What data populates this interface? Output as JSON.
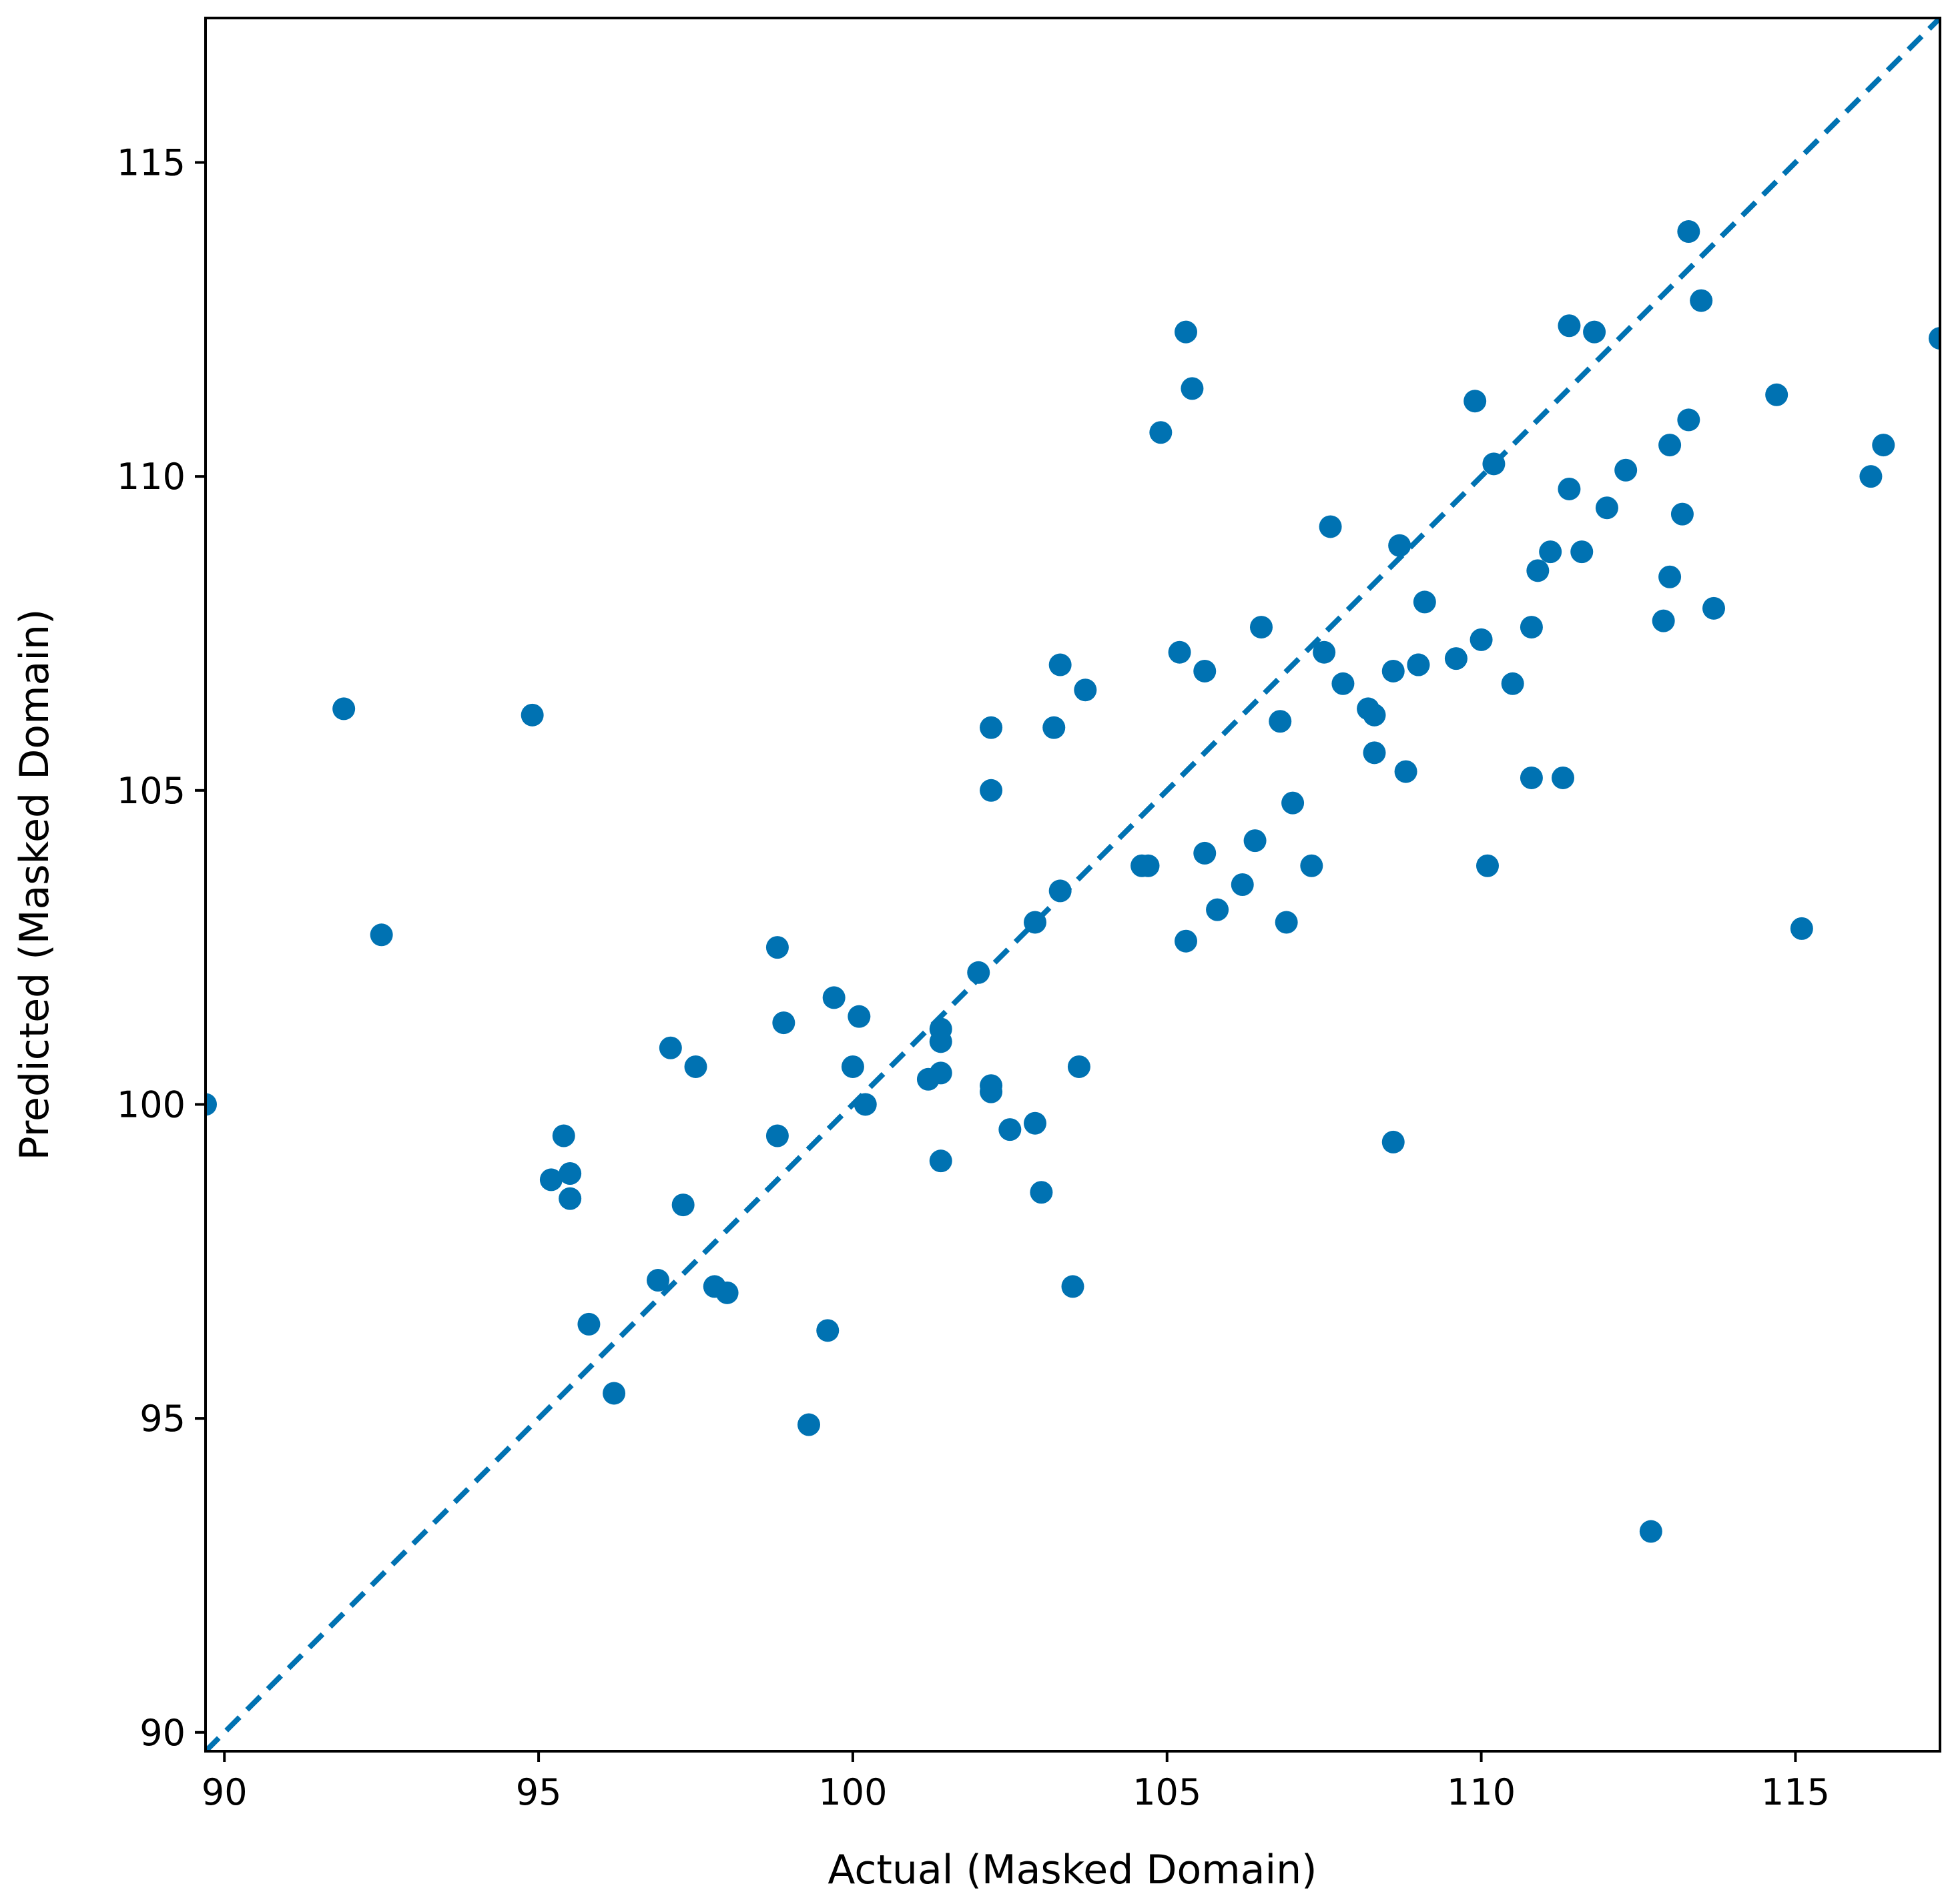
{
  "chart_data": {
    "type": "scatter",
    "xlabel": "Actual (Masked Domain)",
    "ylabel": "Predicted (Masked Domain)",
    "xlim": [
      89.7,
      117.3
    ],
    "ylim": [
      89.7,
      117.3
    ],
    "xticks": [
      90,
      95,
      100,
      105,
      110,
      115
    ],
    "yticks": [
      90,
      95,
      100,
      105,
      110,
      115
    ],
    "grid": false,
    "point_color": "#0072B2",
    "reference_line": {
      "style": "dashed",
      "from": [
        89.7,
        89.7
      ],
      "to": [
        117.3,
        117.3
      ],
      "color": "#0072B2"
    },
    "points": [
      [
        89.7,
        100.0
      ],
      [
        91.9,
        106.3
      ],
      [
        92.5,
        102.7
      ],
      [
        94.9,
        106.2
      ],
      [
        95.2,
        98.8
      ],
      [
        95.4,
        99.5
      ],
      [
        95.5,
        98.5
      ],
      [
        95.5,
        98.9
      ],
      [
        95.8,
        96.5
      ],
      [
        96.2,
        95.4
      ],
      [
        96.9,
        97.2
      ],
      [
        97.1,
        100.9
      ],
      [
        97.3,
        98.4
      ],
      [
        97.5,
        100.6
      ],
      [
        97.8,
        97.1
      ],
      [
        98.0,
        97.0
      ],
      [
        98.8,
        102.5
      ],
      [
        98.8,
        99.5
      ],
      [
        98.9,
        101.3
      ],
      [
        99.3,
        94.9
      ],
      [
        99.6,
        96.4
      ],
      [
        99.7,
        101.7
      ],
      [
        100.0,
        100.6
      ],
      [
        100.1,
        101.4
      ],
      [
        100.2,
        100.0
      ],
      [
        101.2,
        100.4
      ],
      [
        101.4,
        100.5
      ],
      [
        101.4,
        101.2
      ],
      [
        101.4,
        101.0
      ],
      [
        101.4,
        99.1
      ],
      [
        102.0,
        102.1
      ],
      [
        102.2,
        100.2
      ],
      [
        102.2,
        100.3
      ],
      [
        102.2,
        105.0
      ],
      [
        102.2,
        106.0
      ],
      [
        102.5,
        99.6
      ],
      [
        102.9,
        102.9
      ],
      [
        102.9,
        99.7
      ],
      [
        103.0,
        98.6
      ],
      [
        103.2,
        106.0
      ],
      [
        103.3,
        107.0
      ],
      [
        103.3,
        103.4
      ],
      [
        103.5,
        97.1
      ],
      [
        103.6,
        100.6
      ],
      [
        103.7,
        106.6
      ],
      [
        104.6,
        103.8
      ],
      [
        104.7,
        103.8
      ],
      [
        104.9,
        110.7
      ],
      [
        105.2,
        107.2
      ],
      [
        105.3,
        112.3
      ],
      [
        105.3,
        102.6
      ],
      [
        105.4,
        111.4
      ],
      [
        105.6,
        106.9
      ],
      [
        105.6,
        104.0
      ],
      [
        105.8,
        103.1
      ],
      [
        106.2,
        103.5
      ],
      [
        106.4,
        104.2
      ],
      [
        106.5,
        107.6
      ],
      [
        106.8,
        106.1
      ],
      [
        106.9,
        102.9
      ],
      [
        107.0,
        104.8
      ],
      [
        107.3,
        103.8
      ],
      [
        107.5,
        107.2
      ],
      [
        107.6,
        109.2
      ],
      [
        107.8,
        106.7
      ],
      [
        108.2,
        106.3
      ],
      [
        108.3,
        105.6
      ],
      [
        108.3,
        106.2
      ],
      [
        108.6,
        106.9
      ],
      [
        108.6,
        99.4
      ],
      [
        108.7,
        108.9
      ],
      [
        108.8,
        105.3
      ],
      [
        109.0,
        107.0
      ],
      [
        109.0,
        107.0
      ],
      [
        109.1,
        108.0
      ],
      [
        109.6,
        107.1
      ],
      [
        109.9,
        111.2
      ],
      [
        110.0,
        107.4
      ],
      [
        110.1,
        103.8
      ],
      [
        110.2,
        110.2
      ],
      [
        110.5,
        106.7
      ],
      [
        110.8,
        107.6
      ],
      [
        110.8,
        105.2
      ],
      [
        110.9,
        108.5
      ],
      [
        111.1,
        108.8
      ],
      [
        111.3,
        105.2
      ],
      [
        111.4,
        112.4
      ],
      [
        111.4,
        109.8
      ],
      [
        111.6,
        108.8
      ],
      [
        111.8,
        112.3
      ],
      [
        112.0,
        109.5
      ],
      [
        112.3,
        110.1
      ],
      [
        112.7,
        93.2
      ],
      [
        112.9,
        107.7
      ],
      [
        113.0,
        108.4
      ],
      [
        113.0,
        110.5
      ],
      [
        113.2,
        109.4
      ],
      [
        113.3,
        110.9
      ],
      [
        113.3,
        113.9
      ],
      [
        113.5,
        112.8
      ],
      [
        113.7,
        107.9
      ],
      [
        114.7,
        111.3
      ],
      [
        115.1,
        102.8
      ],
      [
        116.2,
        110.0
      ],
      [
        116.4,
        110.5
      ],
      [
        117.3,
        112.2
      ]
    ]
  }
}
